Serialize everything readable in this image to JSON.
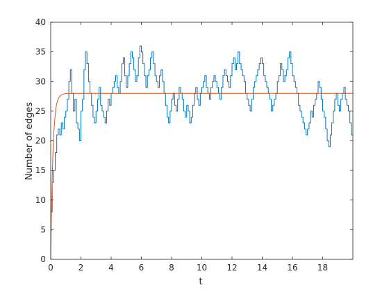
{
  "chart_data": {
    "type": "line",
    "xlabel": "t",
    "ylabel": "Number of edges",
    "xlim": [
      0,
      20
    ],
    "ylim": [
      0,
      40
    ],
    "xticks": [
      0,
      2,
      4,
      6,
      8,
      10,
      12,
      14,
      16,
      18
    ],
    "yticks": [
      0,
      5,
      10,
      15,
      20,
      25,
      30,
      35,
      40
    ],
    "grid": false,
    "legend": "none",
    "series": [
      {
        "color": "#0072BD",
        "style": "step",
        "x": [
          0,
          0.1,
          0.2,
          0.3,
          0.4,
          0.5,
          0.6,
          0.7,
          0.8,
          0.9,
          1.0,
          1.1,
          1.2,
          1.3,
          1.4,
          1.5,
          1.6,
          1.7,
          1.8,
          1.9,
          2.0,
          2.1,
          2.2,
          2.3,
          2.4,
          2.5,
          2.6,
          2.7,
          2.8,
          2.9,
          3.0,
          3.1,
          3.2,
          3.3,
          3.4,
          3.5,
          3.6,
          3.7,
          3.8,
          3.9,
          4.0,
          4.1,
          4.2,
          4.3,
          4.4,
          4.5,
          4.6,
          4.7,
          4.8,
          4.9,
          5.0,
          5.1,
          5.2,
          5.3,
          5.4,
          5.5,
          5.6,
          5.7,
          5.8,
          5.9,
          6.0,
          6.1,
          6.2,
          6.3,
          6.4,
          6.5,
          6.6,
          6.7,
          6.8,
          6.9,
          7.0,
          7.1,
          7.2,
          7.3,
          7.4,
          7.5,
          7.6,
          7.7,
          7.8,
          7.9,
          8.0,
          8.1,
          8.2,
          8.3,
          8.4,
          8.5,
          8.6,
          8.7,
          8.8,
          8.9,
          9.0,
          9.1,
          9.2,
          9.3,
          9.4,
          9.5,
          9.6,
          9.7,
          9.8,
          9.9,
          10.0,
          10.1,
          10.2,
          10.3,
          10.4,
          10.5,
          10.6,
          10.7,
          10.8,
          10.9,
          11.0,
          11.1,
          11.2,
          11.3,
          11.4,
          11.5,
          11.6,
          11.7,
          11.8,
          11.9,
          12.0,
          12.1,
          12.2,
          12.3,
          12.4,
          12.5,
          12.6,
          12.7,
          12.8,
          12.9,
          13.0,
          13.1,
          13.2,
          13.3,
          13.4,
          13.5,
          13.6,
          13.7,
          13.8,
          13.9,
          14.0,
          14.1,
          14.2,
          14.3,
          14.4,
          14.5,
          14.6,
          14.7,
          14.8,
          14.9,
          15.0,
          15.1,
          15.2,
          15.3,
          15.4,
          15.5,
          15.6,
          15.7,
          15.8,
          15.9,
          16.0,
          16.1,
          16.2,
          16.3,
          16.4,
          16.5,
          16.6,
          16.7,
          16.8,
          16.9,
          17.0,
          17.1,
          17.2,
          17.3,
          17.4,
          17.5,
          17.6,
          17.7,
          17.8,
          17.9,
          18.0,
          18.1,
          18.2,
          18.3,
          18.4,
          18.5,
          18.6,
          18.7,
          18.8,
          18.9,
          19.0,
          19.1,
          19.2,
          19.3,
          19.4,
          19.5,
          19.6,
          19.7,
          19.8,
          19.9
        ],
        "values": [
          8,
          13,
          15,
          18,
          21,
          22,
          21,
          23,
          22,
          24,
          25,
          27,
          30,
          32,
          28,
          25,
          27,
          23,
          22,
          20,
          25,
          27,
          32,
          35,
          33,
          30,
          28,
          26,
          24,
          23,
          25,
          27,
          29,
          26,
          25,
          24,
          23,
          25,
          27,
          26,
          28,
          29,
          30,
          31,
          29,
          28,
          30,
          33,
          34,
          31,
          29,
          31,
          33,
          35,
          34,
          32,
          30,
          31,
          34,
          36,
          35,
          33,
          31,
          29,
          31,
          32,
          34,
          35,
          33,
          31,
          30,
          29,
          31,
          32,
          30,
          28,
          26,
          24,
          23,
          25,
          27,
          28,
          26,
          25,
          27,
          29,
          28,
          27,
          25,
          24,
          26,
          25,
          23,
          24,
          26,
          28,
          29,
          27,
          26,
          28,
          29,
          30,
          31,
          29,
          28,
          27,
          29,
          30,
          31,
          30,
          29,
          28,
          27,
          29,
          31,
          32,
          31,
          30,
          29,
          31,
          33,
          34,
          32,
          33,
          35,
          33,
          32,
          31,
          30,
          28,
          27,
          26,
          25,
          27,
          29,
          30,
          31,
          32,
          33,
          34,
          33,
          31,
          30,
          29,
          28,
          27,
          25,
          26,
          27,
          28,
          30,
          31,
          33,
          32,
          30,
          31,
          32,
          34,
          35,
          33,
          31,
          30,
          29,
          28,
          26,
          25,
          24,
          23,
          22,
          21,
          22,
          23,
          25,
          24,
          26,
          27,
          28,
          30,
          29,
          27,
          25,
          24,
          22,
          20,
          19,
          21,
          23,
          25,
          27,
          28,
          26,
          25,
          27,
          28,
          29,
          27,
          26,
          25,
          23,
          21
        ]
      },
      {
        "color": "#D95319",
        "style": "smooth",
        "x": [
          0,
          0.05,
          0.1,
          0.15,
          0.2,
          0.25,
          0.3,
          0.35,
          0.4,
          0.5,
          0.6,
          0.7,
          0.8,
          0.9,
          1.0,
          1.2,
          1.5,
          2,
          20
        ],
        "values": [
          0,
          8,
          14,
          18,
          21,
          23,
          24.5,
          25.6,
          26.3,
          27.1,
          27.5,
          27.7,
          27.85,
          27.92,
          27.96,
          27.99,
          28,
          28,
          28
        ]
      }
    ]
  }
}
